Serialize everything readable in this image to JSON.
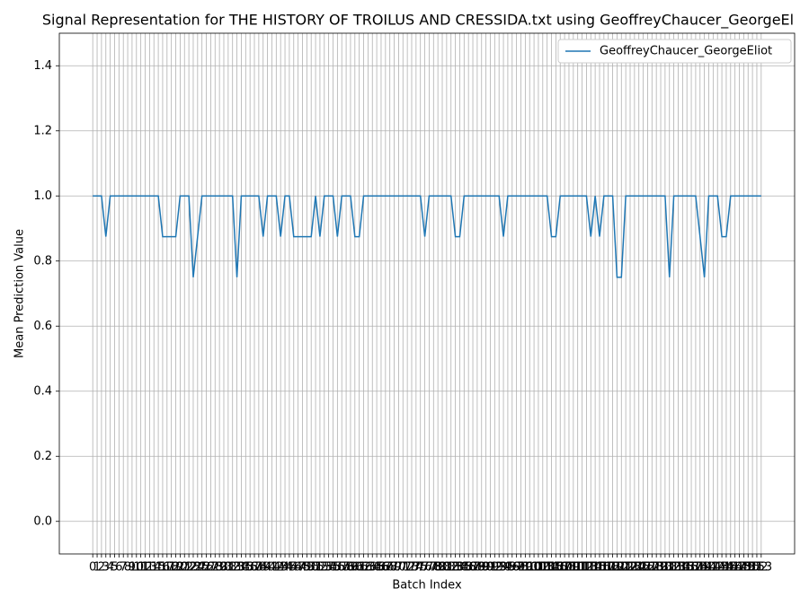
{
  "chart_data": {
    "type": "line",
    "title": "Signal Representation for THE HISTORY OF TROILUS AND CRESSIDA.txt using GeoffreyChaucer_GeorgeEl",
    "xlabel": "Batch Index",
    "ylabel": "Mean Prediction Value",
    "x": [
      0,
      1,
      2,
      3,
      4,
      5,
      6,
      7,
      8,
      9,
      10,
      11,
      12,
      13,
      14,
      15,
      16,
      17,
      18,
      19,
      20,
      21,
      22,
      23,
      24,
      25,
      26,
      27,
      28,
      29,
      30,
      31,
      32,
      33,
      34,
      35,
      36,
      37,
      38,
      39,
      40,
      41,
      42,
      43,
      44,
      45,
      46,
      47,
      48,
      49,
      50,
      51,
      52,
      53,
      54,
      55,
      56,
      57,
      58,
      59,
      60,
      61,
      62,
      63,
      64,
      65,
      66,
      67,
      68,
      69,
      70,
      71,
      72,
      73,
      74,
      75,
      76,
      77,
      78,
      79,
      80,
      81,
      82,
      83,
      84,
      85,
      86,
      87,
      88,
      89,
      90,
      91,
      92,
      93,
      94,
      95,
      96,
      97,
      98,
      99,
      100,
      101,
      102,
      103,
      104,
      105,
      106,
      107,
      108,
      109,
      110,
      111,
      112,
      113,
      114,
      115,
      116,
      117,
      118,
      119,
      120,
      121,
      122,
      123,
      124,
      125,
      126,
      127,
      128,
      129,
      130,
      131,
      132,
      133,
      134,
      135,
      136,
      137,
      138,
      139,
      140,
      141,
      142,
      143,
      144,
      145,
      146,
      147,
      148,
      149,
      150,
      151,
      152,
      153
    ],
    "series": [
      {
        "name": "GeoffreyChaucer_GeorgeEliot",
        "color": "#1f77b4",
        "values": [
          1,
          1,
          1,
          0.875,
          1,
          1,
          1,
          1,
          1,
          1,
          1,
          1,
          1,
          1,
          1,
          1,
          0.875,
          0.875,
          0.875,
          0.875,
          1,
          1,
          1,
          0.75,
          0.875,
          1,
          1,
          1,
          1,
          1,
          1,
          1,
          1,
          0.75,
          1,
          1,
          1,
          1,
          1,
          0.875,
          1,
          1,
          1,
          0.875,
          1,
          1,
          0.875,
          0.875,
          0.875,
          0.875,
          0.875,
          1,
          0.875,
          1,
          1,
          1,
          0.875,
          1,
          1,
          1,
          0.875,
          0.875,
          1,
          1,
          1,
          1,
          1,
          1,
          1,
          1,
          1,
          1,
          1,
          1,
          1,
          1,
          0.875,
          1,
          1,
          1,
          1,
          1,
          1,
          0.875,
          0.875,
          1,
          1,
          1,
          1,
          1,
          1,
          1,
          1,
          1,
          0.875,
          1,
          1,
          1,
          1,
          1,
          1,
          1,
          1,
          1,
          1,
          0.875,
          0.875,
          1,
          1,
          1,
          1,
          1,
          1,
          1,
          0.875,
          1,
          0.875,
          1,
          1,
          1,
          0.75,
          0.75,
          1,
          1,
          1,
          1,
          1,
          1,
          1,
          1,
          1,
          1,
          0.75,
          1,
          1,
          1,
          1,
          1,
          1,
          0.875,
          0.75,
          1,
          1,
          1,
          0.875,
          0.875,
          1,
          1,
          1,
          1,
          1,
          1,
          1,
          1
        ]
      }
    ],
    "xlim": [
      -7.65,
      160.65
    ],
    "xticks": [
      0,
      1,
      2,
      3,
      4,
      5,
      6,
      7,
      8,
      9,
      10,
      11,
      12,
      13,
      14,
      15,
      16,
      17,
      18,
      19,
      20,
      21,
      22,
      23,
      24,
      25,
      26,
      27,
      28,
      29,
      30,
      31,
      32,
      33,
      34,
      35,
      36,
      37,
      38,
      39,
      40,
      41,
      42,
      43,
      44,
      45,
      46,
      47,
      48,
      49,
      50,
      51,
      52,
      53,
      54,
      55,
      56,
      57,
      58,
      59,
      60,
      61,
      62,
      63,
      64,
      65,
      66,
      67,
      68,
      69,
      70,
      71,
      72,
      73,
      74,
      75,
      76,
      77,
      78,
      79,
      80,
      81,
      82,
      83,
      84,
      85,
      86,
      87,
      88,
      89,
      90,
      91,
      92,
      93,
      94,
      95,
      96,
      97,
      98,
      99,
      100,
      101,
      102,
      103,
      104,
      105,
      106,
      107,
      108,
      109,
      110,
      111,
      112,
      113,
      114,
      115,
      116,
      117,
      118,
      119,
      120,
      121,
      122,
      123,
      124,
      125,
      126,
      127,
      128,
      129,
      130,
      131,
      132,
      133,
      134,
      135,
      136,
      137,
      138,
      139,
      140,
      141,
      142,
      143,
      144,
      145,
      146,
      147,
      148,
      149,
      150,
      151,
      152,
      153
    ],
    "ylim": [
      -0.1,
      1.5
    ],
    "yticks": [
      {
        "value": 0,
        "label": "0.0"
      },
      {
        "value": 0.2,
        "label": "0.2"
      },
      {
        "value": 0.4,
        "label": "0.4"
      },
      {
        "value": 0.6,
        "label": "0.6"
      },
      {
        "value": 0.8,
        "label": "0.8"
      },
      {
        "value": 1,
        "label": "1.0"
      },
      {
        "value": 1.2,
        "label": "1.2"
      },
      {
        "value": 1.4,
        "label": "1.4"
      }
    ],
    "grid": true,
    "legend": "upper right"
  }
}
